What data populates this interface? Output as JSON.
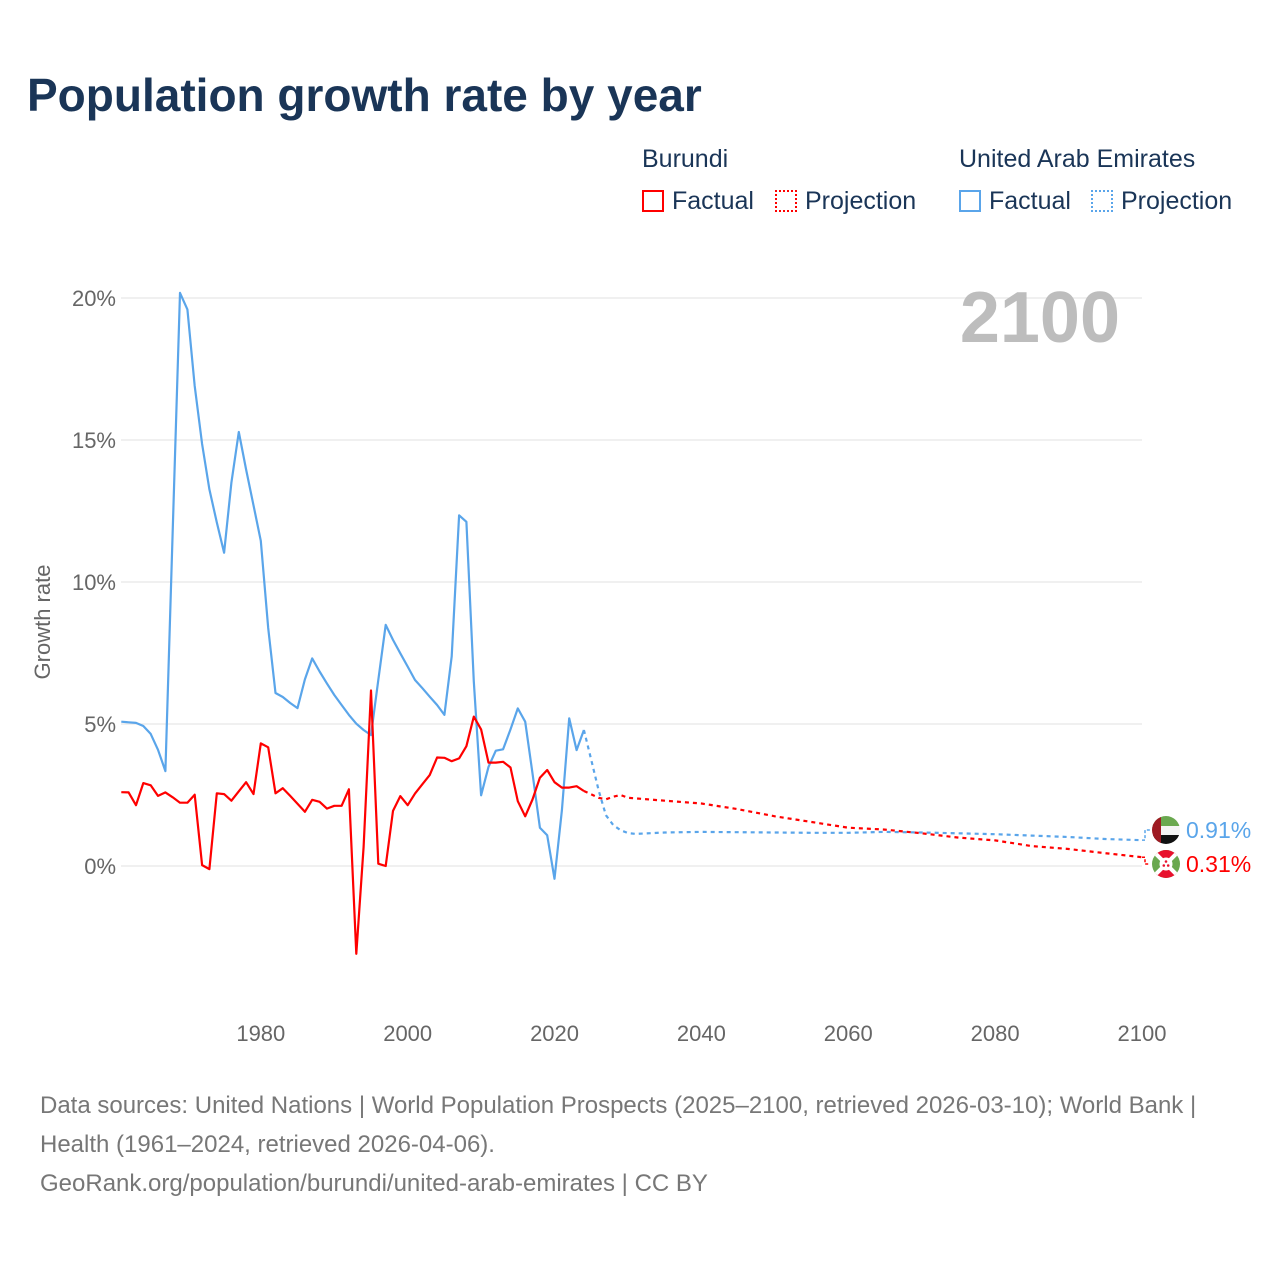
{
  "chart_data": {
    "type": "line",
    "title": "Population growth rate by year",
    "ylabel": "Growth rate",
    "xlabel": "",
    "xlim": [
      1961,
      2100
    ],
    "ylim": [
      -5,
      20
    ],
    "grid": true,
    "current_year_label": "2100",
    "x_ticks": [
      1980,
      2000,
      2020,
      2040,
      2060,
      2080,
      2100
    ],
    "y_ticks": [
      {
        "v": 20,
        "label": "20%"
      },
      {
        "v": 15,
        "label": "15%"
      },
      {
        "v": 10,
        "label": "10%"
      },
      {
        "v": 5,
        "label": "5%"
      },
      {
        "v": 0,
        "label": "0%"
      }
    ],
    "legend": {
      "placement": "top-right",
      "groups": [
        {
          "name": "Burundi",
          "factual": "Factual",
          "projection": "Projection",
          "color": "#ff0000"
        },
        {
          "name": "United Arab Emirates",
          "factual": "Factual",
          "projection": "Projection",
          "color": "#5aa5ea"
        }
      ]
    },
    "series": [
      {
        "name": "United Arab Emirates",
        "color": "#5aa5ea",
        "end_label": "0.91%",
        "flag": "uae-flag",
        "factual": {
          "x": [
            1961,
            1962,
            1963,
            1964,
            1965,
            1966,
            1967,
            1968,
            1969,
            1970,
            1971,
            1972,
            1973,
            1974,
            1975,
            1976,
            1977,
            1978,
            1979,
            1980,
            1981,
            1982,
            1983,
            1984,
            1985,
            1986,
            1987,
            1988,
            1989,
            1990,
            1991,
            1992,
            1993,
            1994,
            1995,
            1996,
            1997,
            1998,
            1999,
            2000,
            2001,
            2002,
            2003,
            2004,
            2005,
            2006,
            2007,
            2008,
            2009,
            2010,
            2011,
            2012,
            2013,
            2014,
            2015,
            2016,
            2017,
            2018,
            2019,
            2020,
            2021,
            2022,
            2023,
            2024
          ],
          "y": [
            5.08,
            5.06,
            5.04,
            4.93,
            4.65,
            4.09,
            3.34,
            11.8,
            20.18,
            19.6,
            16.9,
            14.86,
            13.26,
            12.1,
            11.03,
            13.5,
            15.28,
            13.96,
            12.7,
            11.45,
            8.38,
            6.09,
            5.95,
            5.74,
            5.56,
            6.57,
            7.31,
            6.85,
            6.43,
            6.02,
            5.67,
            5.32,
            5.01,
            4.79,
            4.61,
            6.55,
            8.49,
            7.96,
            7.49,
            7.02,
            6.55,
            6.26,
            5.96,
            5.67,
            5.32,
            7.38,
            12.35,
            12.12,
            6.5,
            2.49,
            3.49,
            4.06,
            4.11,
            4.81,
            5.55,
            5.08,
            3.26,
            1.35,
            1.08,
            -0.45,
            1.96,
            5.2,
            4.08,
            4.79
          ]
        },
        "projection": {
          "x": [
            2024,
            2025,
            2026,
            2027,
            2028,
            2029,
            2030,
            2031,
            2035,
            2040,
            2045,
            2050,
            2055,
            2060,
            2065,
            2070,
            2075,
            2080,
            2085,
            2090,
            2095,
            2100
          ],
          "y": [
            4.79,
            3.73,
            2.67,
            1.79,
            1.44,
            1.26,
            1.16,
            1.13,
            1.18,
            1.2,
            1.19,
            1.18,
            1.17,
            1.17,
            1.2,
            1.18,
            1.15,
            1.12,
            1.07,
            1.02,
            0.95,
            0.91
          ]
        }
      },
      {
        "name": "Burundi",
        "color": "#ff0000",
        "end_label": "0.31%",
        "flag": "burundi-flag",
        "factual": {
          "x": [
            1961,
            1962,
            1963,
            1964,
            1965,
            1966,
            1967,
            1968,
            1969,
            1970,
            1971,
            1972,
            1973,
            1974,
            1975,
            1976,
            1977,
            1978,
            1979,
            1980,
            1981,
            1982,
            1983,
            1984,
            1985,
            1986,
            1987,
            1988,
            1989,
            1990,
            1991,
            1992,
            1993,
            1994,
            1995,
            1996,
            1997,
            1998,
            1999,
            2000,
            2001,
            2002,
            2003,
            2004,
            2005,
            2006,
            2007,
            2008,
            2009,
            2010,
            2011,
            2012,
            2013,
            2014,
            2015,
            2016,
            2017,
            2018,
            2019,
            2020,
            2021,
            2022,
            2023,
            2024
          ],
          "y": [
            2.6,
            2.59,
            2.14,
            2.92,
            2.84,
            2.47,
            2.59,
            2.42,
            2.23,
            2.23,
            2.51,
            0.03,
            -0.11,
            2.56,
            2.53,
            2.3,
            2.63,
            2.95,
            2.53,
            4.32,
            4.18,
            2.56,
            2.74,
            2.47,
            2.19,
            1.91,
            2.33,
            2.26,
            2.02,
            2.12,
            2.12,
            2.7,
            -3.09,
            0.67,
            6.18,
            0.08,
            0.0,
            1.94,
            2.46,
            2.14,
            2.55,
            2.88,
            3.2,
            3.82,
            3.81,
            3.69,
            3.79,
            4.22,
            5.26,
            4.81,
            3.64,
            3.64,
            3.67,
            3.47,
            2.28,
            1.75,
            2.34,
            3.11,
            3.38,
            2.95,
            2.76,
            2.76,
            2.81,
            2.64
          ]
        },
        "projection": {
          "x": [
            2024,
            2025,
            2026,
            2027,
            2028,
            2029,
            2030,
            2035,
            2040,
            2045,
            2050,
            2055,
            2060,
            2065,
            2070,
            2075,
            2080,
            2085,
            2090,
            2095,
            2100
          ],
          "y": [
            2.64,
            2.52,
            2.4,
            2.35,
            2.44,
            2.5,
            2.4,
            2.3,
            2.2,
            2.0,
            1.75,
            1.55,
            1.35,
            1.28,
            1.15,
            1.0,
            0.9,
            0.7,
            0.6,
            0.45,
            0.31
          ]
        }
      }
    ]
  },
  "footer": {
    "sources": "Data sources: United Nations | World Population Prospects (2025–2100, retrieved 2026-03-10); World Bank | Health (1961–2024, retrieved 2026-04-06).",
    "link": "GeoRank.org/population/burundi/united-arab-emirates | CC BY"
  }
}
